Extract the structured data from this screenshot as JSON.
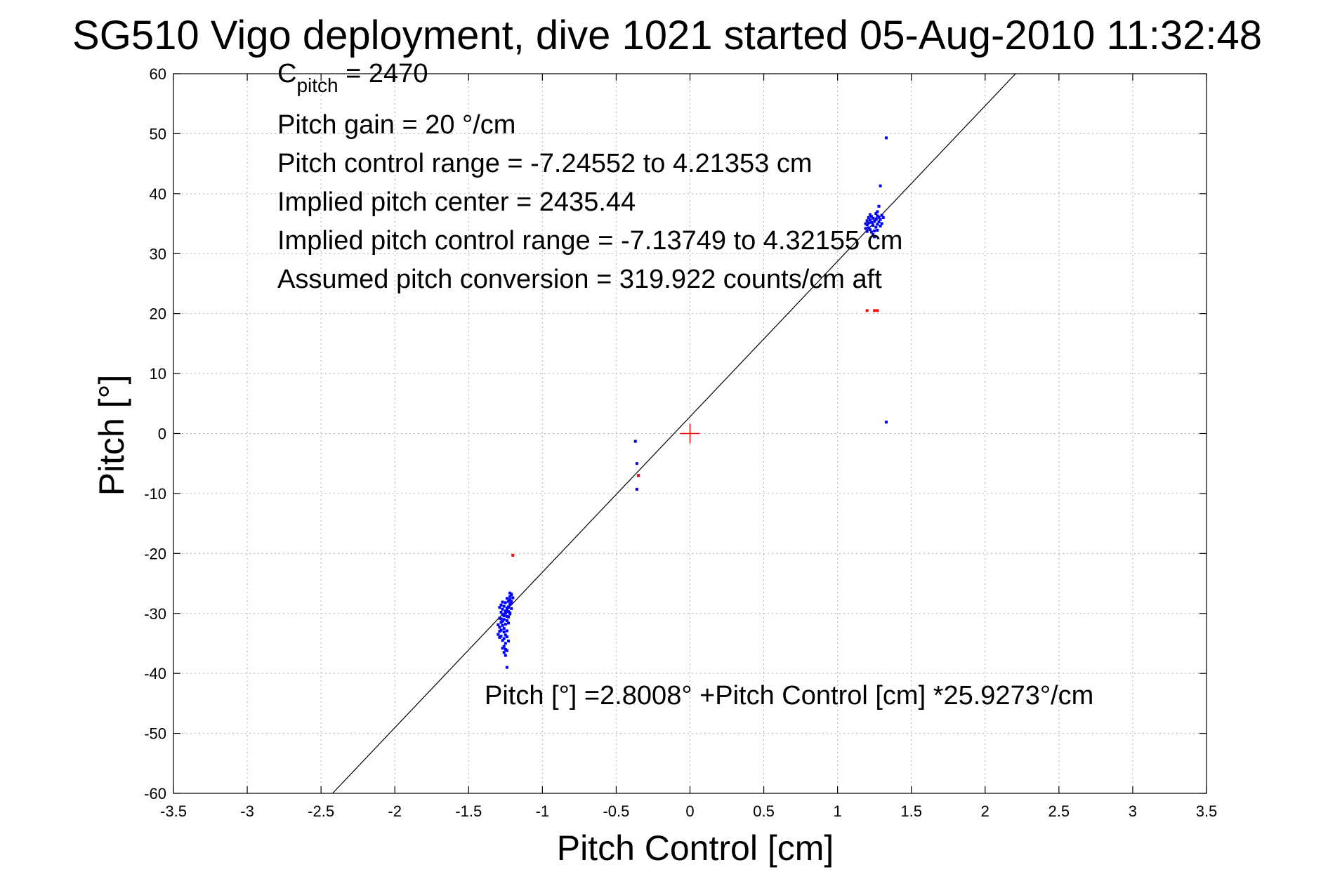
{
  "chart_data": {
    "type": "scatter",
    "title": "SG510 Vigo deployment, dive 1021 started 05-Aug-2010 11:32:48",
    "xlabel": "Pitch Control [cm]",
    "ylabel": "Pitch [°]",
    "xlim": [
      -3.5,
      3.5
    ],
    "ylim": [
      -60,
      60
    ],
    "xticks": [
      -3.5,
      -3,
      -2.5,
      -2,
      -1.5,
      -1,
      -0.5,
      0,
      0.5,
      1,
      1.5,
      2,
      2.5,
      3,
      3.5
    ],
    "yticks": [
      -60,
      -50,
      -40,
      -30,
      -20,
      -10,
      0,
      10,
      20,
      30,
      40,
      50,
      60
    ],
    "grid": true,
    "annotations": {
      "c_pitch_main": "C",
      "c_pitch_sub": "pitch",
      "c_pitch_value": " = 2470",
      "pitch_gain": "Pitch gain = 20 °/cm",
      "control_range": "Pitch control range = -7.24552 to 4.21353 cm",
      "implied_center": "Implied pitch center = 2435.44",
      "implied_range": "Implied pitch control range = -7.13749 to 4.32155 cm",
      "conversion": "Assumed pitch conversion = 319.922 counts/cm aft",
      "fit_equation": "Pitch [°] =2.8008° +Pitch Control [cm] *25.9273°/cm"
    },
    "fit_line": {
      "intercept": 2.8008,
      "slope": 25.9273,
      "color": "#000000"
    },
    "center_marker": {
      "x": 0,
      "y": 0,
      "color": "#ff0000"
    },
    "series": [
      {
        "color": "#0000ff",
        "points": [
          [
            -1.24,
            -27.5
          ],
          [
            -1.23,
            -28.0
          ],
          [
            -1.22,
            -27.2
          ],
          [
            -1.21,
            -26.8
          ],
          [
            -1.22,
            -28.5
          ],
          [
            -1.23,
            -29.0
          ],
          [
            -1.24,
            -29.5
          ],
          [
            -1.25,
            -28.2
          ],
          [
            -1.26,
            -28.8
          ],
          [
            -1.27,
            -29.3
          ],
          [
            -1.25,
            -30.0
          ],
          [
            -1.24,
            -30.5
          ],
          [
            -1.26,
            -31.0
          ],
          [
            -1.27,
            -30.2
          ],
          [
            -1.28,
            -29.8
          ],
          [
            -1.29,
            -30.8
          ],
          [
            -1.28,
            -31.5
          ],
          [
            -1.27,
            -32.0
          ],
          [
            -1.26,
            -32.5
          ],
          [
            -1.25,
            -31.8
          ],
          [
            -1.24,
            -31.2
          ],
          [
            -1.23,
            -30.6
          ],
          [
            -1.22,
            -29.9
          ],
          [
            -1.21,
            -29.2
          ],
          [
            -1.21,
            -28.3
          ],
          [
            -1.22,
            -27.7
          ],
          [
            -1.23,
            -28.9
          ],
          [
            -1.24,
            -29.1
          ],
          [
            -1.25,
            -29.6
          ],
          [
            -1.26,
            -30.4
          ],
          [
            -1.28,
            -32.8
          ],
          [
            -1.29,
            -33.0
          ],
          [
            -1.3,
            -33.5
          ],
          [
            -1.29,
            -34.0
          ],
          [
            -1.28,
            -33.8
          ],
          [
            -1.27,
            -34.5
          ],
          [
            -1.26,
            -34.2
          ],
          [
            -1.25,
            -33.6
          ],
          [
            -1.24,
            -32.9
          ],
          [
            -1.25,
            -35.0
          ],
          [
            -1.26,
            -35.5
          ],
          [
            -1.27,
            -35.8
          ],
          [
            -1.26,
            -36.5
          ],
          [
            -1.25,
            -37.0
          ],
          [
            -1.24,
            -36.2
          ],
          [
            -1.3,
            -31.9
          ],
          [
            -1.29,
            -32.3
          ],
          [
            -1.28,
            -30.9
          ],
          [
            -1.27,
            -31.3
          ],
          [
            -1.23,
            -31.6
          ],
          [
            -1.22,
            -30.1
          ],
          [
            -1.21,
            -28.0
          ],
          [
            -1.2,
            -27.4
          ],
          [
            -1.21,
            -26.9
          ],
          [
            -1.22,
            -26.6
          ],
          [
            -1.23,
            -29.7
          ],
          [
            -1.28,
            -28.6
          ],
          [
            -1.29,
            -29.0
          ],
          [
            -1.27,
            -28.1
          ],
          [
            -1.24,
            -33.9
          ],
          [
            -1.23,
            -34.6
          ],
          [
            -1.25,
            -36.0
          ],
          [
            -1.26,
            -33.1
          ],
          [
            -1.24,
            -39.0
          ],
          [
            -0.37,
            -1.3
          ],
          [
            -0.36,
            -5.0
          ],
          [
            -0.35,
            -7.0
          ],
          [
            -0.36,
            -9.3
          ],
          [
            1.33,
            49.3
          ],
          [
            1.29,
            41.3
          ],
          [
            1.28,
            37.9
          ],
          [
            1.27,
            37.0
          ],
          [
            1.3,
            36.4
          ],
          [
            1.28,
            36.1
          ],
          [
            1.26,
            35.8
          ],
          [
            1.25,
            35.4
          ],
          [
            1.24,
            35.9
          ],
          [
            1.23,
            36.2
          ],
          [
            1.22,
            35.6
          ],
          [
            1.21,
            35.1
          ],
          [
            1.2,
            34.8
          ],
          [
            1.21,
            34.3
          ],
          [
            1.22,
            34.0
          ],
          [
            1.23,
            33.6
          ],
          [
            1.24,
            33.2
          ],
          [
            1.25,
            33.8
          ],
          [
            1.26,
            34.4
          ],
          [
            1.27,
            34.9
          ],
          [
            1.28,
            35.3
          ],
          [
            1.29,
            35.7
          ],
          [
            1.3,
            35.0
          ],
          [
            1.31,
            36.0
          ],
          [
            1.29,
            34.6
          ],
          [
            1.27,
            33.9
          ],
          [
            1.25,
            32.8
          ],
          [
            1.24,
            34.7
          ],
          [
            1.23,
            35.2
          ],
          [
            1.22,
            36.5
          ],
          [
            1.21,
            36.0
          ],
          [
            1.2,
            35.5
          ],
          [
            1.19,
            35.0
          ],
          [
            1.19,
            34.2
          ],
          [
            1.2,
            33.7
          ],
          [
            1.26,
            36.7
          ],
          [
            1.27,
            36.3
          ],
          [
            1.33,
            1.9
          ]
        ]
      },
      {
        "color": "#ff0000",
        "points": [
          [
            -1.2,
            -20.3
          ],
          [
            -0.35,
            -7.0
          ],
          [
            1.2,
            20.5
          ],
          [
            1.25,
            20.5
          ],
          [
            1.27,
            20.5
          ]
        ]
      }
    ]
  }
}
